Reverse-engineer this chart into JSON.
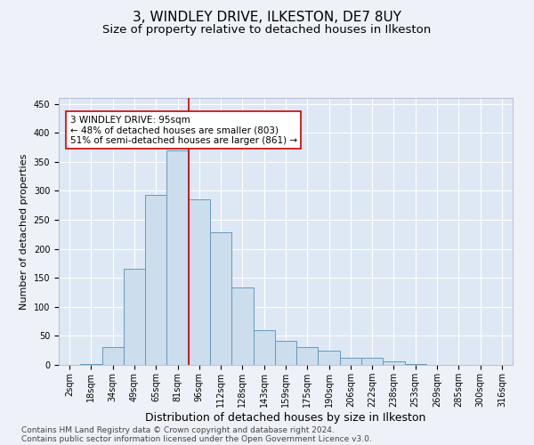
{
  "title1": "3, WINDLEY DRIVE, ILKESTON, DE7 8UY",
  "title2": "Size of property relative to detached houses in Ilkeston",
  "xlabel": "Distribution of detached houses by size in Ilkeston",
  "ylabel": "Number of detached properties",
  "categories": [
    "2sqm",
    "18sqm",
    "34sqm",
    "49sqm",
    "65sqm",
    "81sqm",
    "96sqm",
    "112sqm",
    "128sqm",
    "143sqm",
    "159sqm",
    "175sqm",
    "190sqm",
    "206sqm",
    "222sqm",
    "238sqm",
    "253sqm",
    "269sqm",
    "285sqm",
    "300sqm",
    "316sqm"
  ],
  "values": [
    0,
    1,
    30,
    165,
    293,
    370,
    285,
    228,
    133,
    60,
    42,
    30,
    25,
    12,
    13,
    6,
    2,
    0,
    0,
    0,
    0
  ],
  "bar_color": "#ccdded",
  "bar_edge_color": "#6699bb",
  "property_line_color": "#cc0000",
  "annotation_text": "3 WINDLEY DRIVE: 95sqm\n← 48% of detached houses are smaller (803)\n51% of semi-detached houses are larger (861) →",
  "annotation_box_color": "#ffffff",
  "annotation_box_edge": "#cc0000",
  "ylim": [
    0,
    460
  ],
  "yticks": [
    0,
    50,
    100,
    150,
    200,
    250,
    300,
    350,
    400,
    450
  ],
  "footer1": "Contains HM Land Registry data © Crown copyright and database right 2024.",
  "footer2": "Contains public sector information licensed under the Open Government Licence v3.0.",
  "bg_color": "#eef2f8",
  "plot_bg_color": "#dde8f4",
  "grid_color": "#ffffff",
  "title1_fontsize": 11,
  "title2_fontsize": 9.5,
  "xlabel_fontsize": 9,
  "ylabel_fontsize": 8,
  "tick_fontsize": 7,
  "annotation_fontsize": 7.5,
  "footer_fontsize": 6.5
}
